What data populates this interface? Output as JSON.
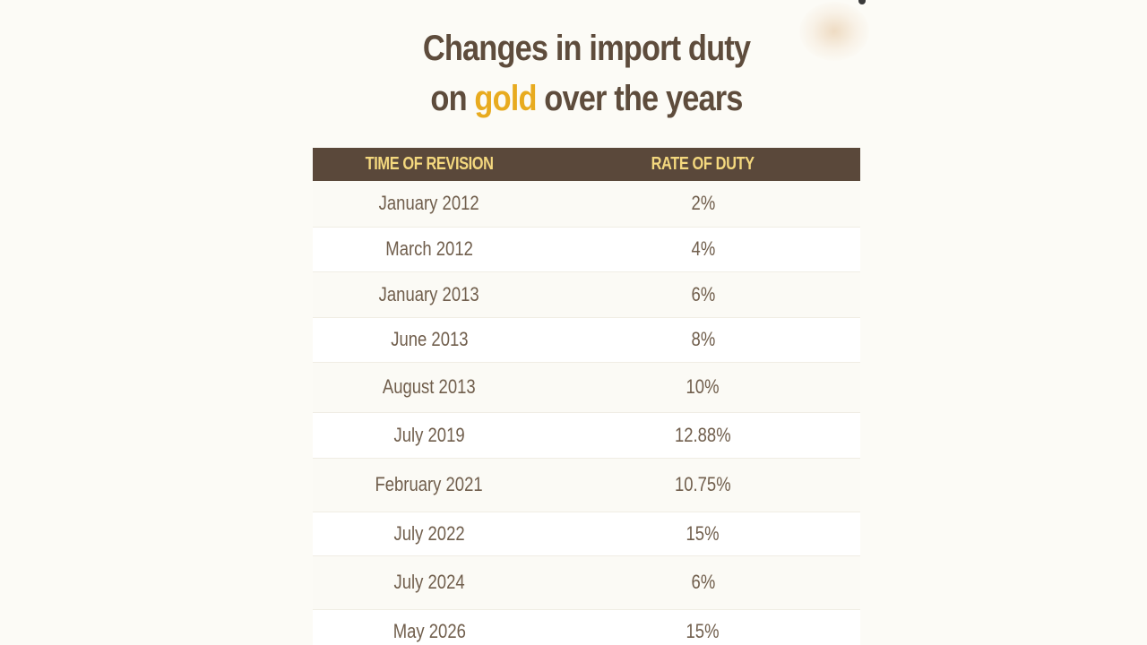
{
  "title": {
    "line1": "Changes in import duty",
    "line2_pre": "on",
    "line2_highlight": "gold",
    "line2_post": "over the years"
  },
  "table": {
    "headers": [
      "TIME OF REVISION",
      "RATE OF DUTY"
    ],
    "rows": [
      {
        "time": "January 2012",
        "rate": "2%"
      },
      {
        "time": "March 2012",
        "rate": "4%"
      },
      {
        "time": "January 2013",
        "rate": "6%"
      },
      {
        "time": "June 2013",
        "rate": "8%"
      },
      {
        "time": "August 2013",
        "rate": "10%"
      },
      {
        "time": "July 2019",
        "rate": "12.88%"
      },
      {
        "time": "February 2021",
        "rate": "10.75%"
      },
      {
        "time": "July 2022",
        "rate": "15%"
      },
      {
        "time": "July 2024",
        "rate": "6%"
      },
      {
        "time": "May 2026",
        "rate": "15%"
      }
    ]
  },
  "colors": {
    "title_text": "#5e4c3c",
    "highlight": "#e8ab1f",
    "header_bg": "#5a483a",
    "header_text": "#f4d87e",
    "cell_text": "#705e4c",
    "background": "#fcfbf6"
  }
}
